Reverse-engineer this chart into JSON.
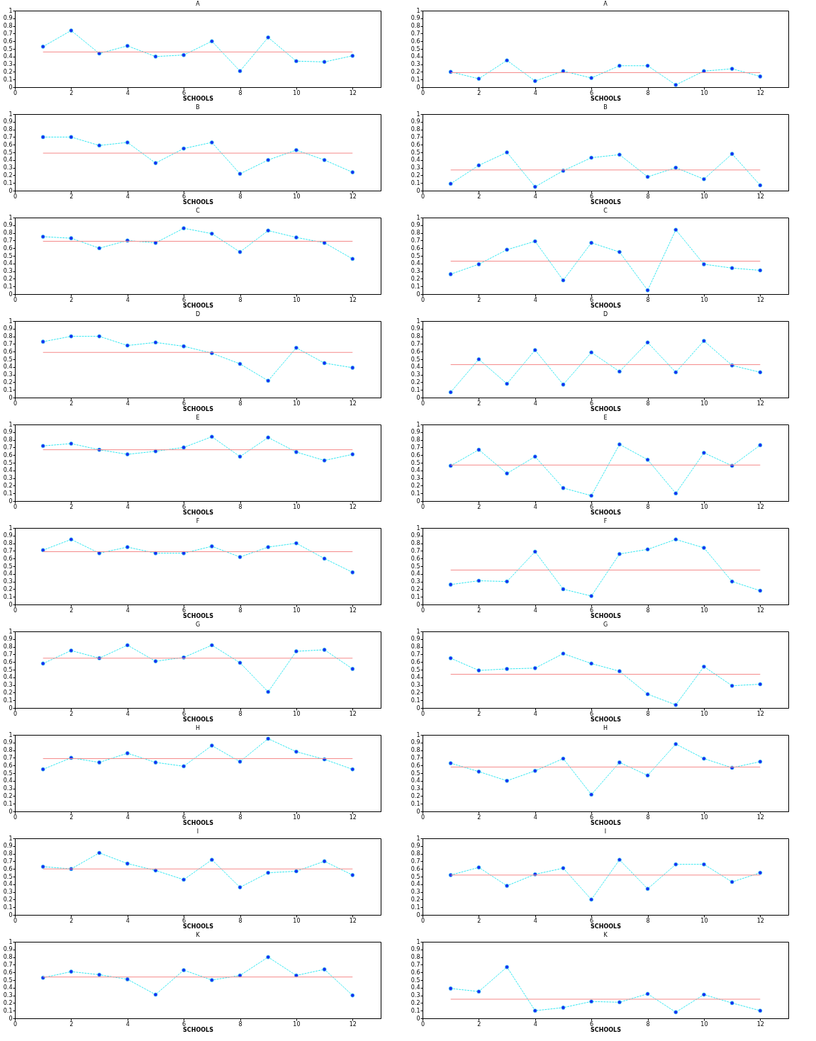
{
  "chart_data": [
    {
      "type": "line",
      "title": "A",
      "xlabel": "SCHOOLS",
      "x": [
        1,
        2,
        3,
        4,
        5,
        6,
        7,
        8,
        9,
        10,
        11,
        12
      ],
      "series": [
        {
          "color": "#33e8f2",
          "colors": [
            "#1a2cf0",
            "#1a2cf0",
            "#1a2cf0",
            "#1a2cf0",
            "#1a2cf0",
            "#1a2cf0",
            "#1a2cf0",
            "#1a2cf0",
            "#1a2cf0",
            "#1a2cf0",
            "#1a2cf0",
            "#1a2cf0"
          ],
          "values": [
            0.53,
            0.74,
            0.44,
            0.54,
            0.4,
            0.42,
            0.6,
            0.21,
            0.65,
            0.34,
            0.33,
            0.41
          ]
        }
      ],
      "ref_lines": [
        {
          "axis": "y",
          "value": 0.46,
          "color": "#f58a8a"
        }
      ],
      "xlim": [
        0,
        13
      ],
      "xticks": [
        0,
        2,
        4,
        6,
        8,
        10,
        12
      ],
      "ylim": [
        0,
        1
      ],
      "yticks": [
        0,
        0.1,
        0.2,
        0.3,
        0.4,
        0.5,
        0.6,
        0.7,
        0.8,
        0.9,
        1
      ],
      "marker": "circle",
      "line_style": "dashed"
    },
    {
      "type": "line",
      "title": "A",
      "xlabel": "SCHOOLS",
      "x": [
        1,
        2,
        3,
        4,
        5,
        6,
        7,
        8,
        9,
        10,
        11,
        12
      ],
      "series": [
        {
          "color": "#33e8f2",
          "colors": [
            "#1a2cf0",
            "#1a2cf0",
            "#1a2cf0",
            "#1a2cf0",
            "#1a2cf0",
            "#1a2cf0",
            "#1a2cf0",
            "#1a2cf0",
            "#1a2cf0",
            "#1a2cf0",
            "#1a2cf0",
            "#1a2cf0"
          ],
          "values": [
            0.2,
            0.11,
            0.35,
            0.08,
            0.21,
            0.12,
            0.28,
            0.28,
            0.03,
            0.21,
            0.24,
            0.14
          ]
        }
      ],
      "ref_lines": [
        {
          "axis": "y",
          "value": 0.19,
          "color": "#f58a8a"
        }
      ],
      "xlim": [
        0,
        13
      ],
      "xticks": [
        0,
        2,
        4,
        6,
        8,
        10,
        12
      ],
      "ylim": [
        0,
        1
      ],
      "yticks": [
        0,
        0.1,
        0.2,
        0.3,
        0.4,
        0.5,
        0.6,
        0.7,
        0.8,
        0.9,
        1
      ],
      "marker": "circle",
      "line_style": "dashed"
    },
    {
      "type": "line",
      "title": "B",
      "xlabel": "SCHOOLS",
      "x": [
        1,
        2,
        3,
        4,
        5,
        6,
        7,
        8,
        9,
        10,
        11,
        12
      ],
      "series": [
        {
          "color": "#33e8f2",
          "colors": [
            "#1a2cf0",
            "#1a2cf0",
            "#1a2cf0",
            "#1a2cf0",
            "#1a2cf0",
            "#1a2cf0",
            "#1a2cf0",
            "#1a2cf0",
            "#1a2cf0",
            "#1a2cf0",
            "#1a2cf0",
            "#1a2cf0"
          ],
          "values": [
            0.7,
            0.7,
            0.59,
            0.63,
            0.36,
            0.55,
            0.63,
            0.22,
            0.4,
            0.53,
            0.4,
            0.24
          ]
        }
      ],
      "ref_lines": [
        {
          "axis": "y",
          "value": 0.49,
          "color": "#f58a8a"
        }
      ],
      "xlim": [
        0,
        13
      ],
      "xticks": [
        0,
        2,
        4,
        6,
        8,
        10,
        12
      ],
      "ylim": [
        0,
        1
      ],
      "yticks": [
        0,
        0.1,
        0.2,
        0.3,
        0.4,
        0.5,
        0.6,
        0.7,
        0.8,
        0.9,
        1
      ],
      "marker": "circle",
      "line_style": "dashed"
    },
    {
      "type": "line",
      "title": "B",
      "xlabel": "SCHOOLS",
      "x": [
        1,
        2,
        3,
        4,
        5,
        6,
        7,
        8,
        9,
        10,
        11,
        12
      ],
      "series": [
        {
          "color": "#33e8f2",
          "colors": [
            "#1a2cf0",
            "#1a2cf0",
            "#1a2cf0",
            "#1a2cf0",
            "#1a2cf0",
            "#1a2cf0",
            "#1a2cf0",
            "#1a2cf0",
            "#1a2cf0",
            "#1a2cf0",
            "#1a2cf0",
            "#1a2cf0"
          ],
          "values": [
            0.09,
            0.33,
            0.5,
            0.05,
            0.26,
            0.43,
            0.47,
            0.18,
            0.3,
            0.15,
            0.48,
            0.07
          ]
        }
      ],
      "ref_lines": [
        {
          "axis": "y",
          "value": 0.27,
          "color": "#f58a8a"
        }
      ],
      "xlim": [
        0,
        13
      ],
      "xticks": [
        0,
        2,
        4,
        6,
        8,
        10,
        12
      ],
      "ylim": [
        0,
        1
      ],
      "yticks": [
        0,
        0.1,
        0.2,
        0.3,
        0.4,
        0.5,
        0.6,
        0.7,
        0.8,
        0.9,
        1
      ],
      "marker": "circle",
      "line_style": "dashed"
    },
    {
      "type": "line",
      "title": "C",
      "xlabel": "SCHOOLS",
      "x": [
        1,
        2,
        3,
        4,
        5,
        6,
        7,
        8,
        9,
        10,
        11,
        12
      ],
      "series": [
        {
          "color": "#33e8f2",
          "colors": [
            "#1a2cf0",
            "#1a2cf0",
            "#1a2cf0",
            "#1a2cf0",
            "#1a2cf0",
            "#1a2cf0",
            "#1a2cf0",
            "#1a2cf0",
            "#1a2cf0",
            "#1a2cf0",
            "#1a2cf0",
            "#1a2cf0"
          ],
          "values": [
            0.75,
            0.73,
            0.6,
            0.7,
            0.67,
            0.86,
            0.79,
            0.55,
            0.83,
            0.74,
            0.67,
            0.46
          ]
        }
      ],
      "ref_lines": [
        {
          "axis": "y",
          "value": 0.69,
          "color": "#f58a8a"
        }
      ],
      "xlim": [
        0,
        13
      ],
      "xticks": [
        0,
        2,
        4,
        6,
        8,
        10,
        12
      ],
      "ylim": [
        0,
        1
      ],
      "yticks": [
        0,
        0.1,
        0.2,
        0.3,
        0.4,
        0.5,
        0.6,
        0.7,
        0.8,
        0.9,
        1
      ],
      "marker": "circle",
      "line_style": "dashed"
    },
    {
      "type": "line",
      "title": "C",
      "xlabel": "SCHOOLS",
      "x": [
        1,
        2,
        3,
        4,
        5,
        6,
        7,
        8,
        9,
        10,
        11,
        12
      ],
      "series": [
        {
          "color": "#33e8f2",
          "colors": [
            "#1a2cf0",
            "#1a2cf0",
            "#1a2cf0",
            "#1a2cf0",
            "#1a2cf0",
            "#1a2cf0",
            "#1a2cf0",
            "#1a2cf0",
            "#1a2cf0",
            "#1a2cf0",
            "#1a2cf0",
            "#1a2cf0"
          ],
          "values": [
            0.26,
            0.39,
            0.58,
            0.69,
            0.18,
            0.67,
            0.55,
            0.05,
            0.84,
            0.39,
            0.34,
            0.31
          ]
        }
      ],
      "ref_lines": [
        {
          "axis": "y",
          "value": 0.43,
          "color": "#f58a8a"
        }
      ],
      "xlim": [
        0,
        13
      ],
      "xticks": [
        0,
        2,
        4,
        6,
        8,
        10,
        12
      ],
      "ylim": [
        0,
        1
      ],
      "yticks": [
        0,
        0.1,
        0.2,
        0.3,
        0.4,
        0.5,
        0.6,
        0.7,
        0.8,
        0.9,
        1
      ],
      "marker": "circle",
      "line_style": "dashed"
    },
    {
      "type": "line",
      "title": "D",
      "xlabel": "SCHOOLS",
      "x": [
        1,
        2,
        3,
        4,
        5,
        6,
        7,
        8,
        9,
        10,
        11,
        12
      ],
      "series": [
        {
          "color": "#33e8f2",
          "colors": [
            "#1a2cf0",
            "#1a2cf0",
            "#1a2cf0",
            "#1a2cf0",
            "#1a2cf0",
            "#1a2cf0",
            "#1a2cf0",
            "#1a2cf0",
            "#1a2cf0",
            "#1a2cf0",
            "#1a2cf0",
            "#1a2cf0"
          ],
          "values": [
            0.73,
            0.8,
            0.8,
            0.68,
            0.72,
            0.67,
            0.58,
            0.44,
            0.22,
            0.65,
            0.45,
            0.39
          ]
        }
      ],
      "ref_lines": [
        {
          "axis": "y",
          "value": 0.59,
          "color": "#f58a8a"
        }
      ],
      "xlim": [
        0,
        13
      ],
      "xticks": [
        0,
        2,
        4,
        6,
        8,
        10,
        12
      ],
      "ylim": [
        0,
        1
      ],
      "yticks": [
        0,
        0.1,
        0.2,
        0.3,
        0.4,
        0.5,
        0.6,
        0.7,
        0.8,
        0.9,
        1
      ],
      "marker": "circle",
      "line_style": "dashed"
    },
    {
      "type": "line",
      "title": "D",
      "xlabel": "SCHOOLS",
      "x": [
        1,
        2,
        3,
        4,
        5,
        6,
        7,
        8,
        9,
        10,
        11,
        12
      ],
      "series": [
        {
          "color": "#33e8f2",
          "colors": [
            "#1a2cf0",
            "#1a2cf0",
            "#1a2cf0",
            "#1a2cf0",
            "#1a2cf0",
            "#1a2cf0",
            "#1a2cf0",
            "#1a2cf0",
            "#1a2cf0",
            "#1a2cf0",
            "#1a2cf0",
            "#1a2cf0"
          ],
          "values": [
            0.07,
            0.5,
            0.18,
            0.62,
            0.17,
            0.59,
            0.34,
            0.72,
            0.33,
            0.74,
            0.42,
            0.33
          ]
        }
      ],
      "ref_lines": [
        {
          "axis": "y",
          "value": 0.43,
          "color": "#f58a8a"
        }
      ],
      "xlim": [
        0,
        13
      ],
      "xticks": [
        0,
        2,
        4,
        6,
        8,
        10,
        12
      ],
      "ylim": [
        0,
        1
      ],
      "yticks": [
        0,
        0.1,
        0.2,
        0.3,
        0.4,
        0.5,
        0.6,
        0.7,
        0.8,
        0.9,
        1
      ],
      "marker": "circle",
      "line_style": "dashed"
    },
    {
      "type": "line",
      "title": "E",
      "xlabel": "SCHOOLS",
      "x": [
        1,
        2,
        3,
        4,
        5,
        6,
        7,
        8,
        9,
        10,
        11,
        12
      ],
      "series": [
        {
          "color": "#33e8f2",
          "colors": [
            "#1a2cf0",
            "#1a2cf0",
            "#1a2cf0",
            "#1a2cf0",
            "#1a2cf0",
            "#1a2cf0",
            "#1a2cf0",
            "#1a2cf0",
            "#1a2cf0",
            "#1a2cf0",
            "#1a2cf0",
            "#1a2cf0"
          ],
          "values": [
            0.72,
            0.75,
            0.67,
            0.61,
            0.65,
            0.7,
            0.84,
            0.58,
            0.83,
            0.64,
            0.53,
            0.61
          ]
        }
      ],
      "ref_lines": [
        {
          "axis": "y",
          "value": 0.67,
          "color": "#f58a8a"
        }
      ],
      "xlim": [
        0,
        13
      ],
      "xticks": [
        0,
        2,
        4,
        6,
        8,
        10,
        12
      ],
      "ylim": [
        0,
        1
      ],
      "yticks": [
        0,
        0.1,
        0.2,
        0.3,
        0.4,
        0.5,
        0.6,
        0.7,
        0.8,
        0.9,
        1
      ],
      "marker": "circle",
      "line_style": "dashed"
    },
    {
      "type": "line",
      "title": "E",
      "xlabel": "SCHOOLS",
      "x": [
        1,
        2,
        3,
        4,
        5,
        6,
        7,
        8,
        9,
        10,
        11,
        12
      ],
      "series": [
        {
          "color": "#33e8f2",
          "colors": [
            "#1a2cf0",
            "#1a2cf0",
            "#1a2cf0",
            "#1a2cf0",
            "#1a2cf0",
            "#1a2cf0",
            "#1a2cf0",
            "#1a2cf0",
            "#1a2cf0",
            "#1a2cf0",
            "#1a2cf0",
            "#1a2cf0"
          ],
          "values": [
            0.46,
            0.67,
            0.36,
            0.58,
            0.17,
            0.07,
            0.74,
            0.54,
            0.1,
            0.63,
            0.46,
            0.73
          ]
        }
      ],
      "ref_lines": [
        {
          "axis": "y",
          "value": 0.47,
          "color": "#f58a8a"
        }
      ],
      "xlim": [
        0,
        13
      ],
      "xticks": [
        0,
        2,
        4,
        6,
        8,
        10,
        12
      ],
      "ylim": [
        0,
        1
      ],
      "yticks": [
        0,
        0.1,
        0.2,
        0.3,
        0.4,
        0.5,
        0.6,
        0.7,
        0.8,
        0.9,
        1
      ],
      "marker": "circle",
      "line_style": "dashed"
    },
    {
      "type": "line",
      "title": "F",
      "xlabel": "SCHOOLS",
      "x": [
        1,
        2,
        3,
        4,
        5,
        6,
        7,
        8,
        9,
        10,
        11,
        12
      ],
      "series": [
        {
          "color": "#33e8f2",
          "colors": [
            "#1a2cf0",
            "#1a2cf0",
            "#1a2cf0",
            "#1a2cf0",
            "#1a2cf0",
            "#1a2cf0",
            "#1a2cf0",
            "#1a2cf0",
            "#1a2cf0",
            "#1a2cf0",
            "#1a2cf0",
            "#1a2cf0"
          ],
          "values": [
            0.71,
            0.85,
            0.67,
            0.75,
            0.67,
            0.67,
            0.76,
            0.62,
            0.75,
            0.8,
            0.6,
            0.42
          ]
        }
      ],
      "ref_lines": [
        {
          "axis": "y",
          "value": 0.69,
          "color": "#f58a8a"
        }
      ],
      "xlim": [
        0,
        13
      ],
      "xticks": [
        0,
        2,
        4,
        6,
        8,
        10,
        12
      ],
      "ylim": [
        0,
        1
      ],
      "yticks": [
        0,
        0.1,
        0.2,
        0.3,
        0.4,
        0.5,
        0.6,
        0.7,
        0.8,
        0.9,
        1
      ],
      "marker": "circle",
      "line_style": "dashed"
    },
    {
      "type": "line",
      "title": "F",
      "xlabel": "SCHOOLS",
      "x": [
        1,
        2,
        3,
        4,
        5,
        6,
        7,
        8,
        9,
        10,
        11,
        12
      ],
      "series": [
        {
          "color": "#33e8f2",
          "colors": [
            "#1a2cf0",
            "#1a2cf0",
            "#1a2cf0",
            "#1a2cf0",
            "#1a2cf0",
            "#1a2cf0",
            "#1a2cf0",
            "#1a2cf0",
            "#1a2cf0",
            "#1a2cf0",
            "#1a2cf0",
            "#1a2cf0"
          ],
          "values": [
            0.26,
            0.31,
            0.3,
            0.69,
            0.2,
            0.11,
            0.66,
            0.72,
            0.85,
            0.74,
            0.3,
            0.18
          ]
        }
      ],
      "ref_lines": [
        {
          "axis": "y",
          "value": 0.45,
          "color": "#f58a8a"
        }
      ],
      "xlim": [
        0,
        13
      ],
      "xticks": [
        0,
        2,
        4,
        6,
        8,
        10,
        12
      ],
      "ylim": [
        0,
        1
      ],
      "yticks": [
        0,
        0.1,
        0.2,
        0.3,
        0.4,
        0.5,
        0.6,
        0.7,
        0.8,
        0.9,
        1
      ],
      "marker": "circle",
      "line_style": "dashed"
    },
    {
      "type": "line",
      "title": "G",
      "xlabel": "SCHOOLS",
      "x": [
        1,
        2,
        3,
        4,
        5,
        6,
        7,
        8,
        9,
        10,
        11,
        12
      ],
      "series": [
        {
          "color": "#33e8f2",
          "colors": [
            "#1a2cf0",
            "#1a2cf0",
            "#1a2cf0",
            "#1a2cf0",
            "#1a2cf0",
            "#1a2cf0",
            "#1a2cf0",
            "#1a2cf0",
            "#1a2cf0",
            "#1a2cf0",
            "#1a2cf0",
            "#1a2cf0"
          ],
          "values": [
            0.58,
            0.75,
            0.65,
            0.82,
            0.61,
            0.66,
            0.82,
            0.59,
            0.21,
            0.74,
            0.76,
            0.51
          ]
        }
      ],
      "ref_lines": [
        {
          "axis": "y",
          "value": 0.65,
          "color": "#f58a8a"
        }
      ],
      "xlim": [
        0,
        13
      ],
      "xticks": [
        0,
        2,
        4,
        6,
        8,
        10,
        12
      ],
      "ylim": [
        0,
        1
      ],
      "yticks": [
        0,
        0.1,
        0.2,
        0.3,
        0.4,
        0.5,
        0.6,
        0.7,
        0.8,
        0.9,
        1
      ],
      "marker": "circle",
      "line_style": "dashed"
    },
    {
      "type": "line",
      "title": "G",
      "xlabel": "SCHOOLS",
      "x": [
        1,
        2,
        3,
        4,
        5,
        6,
        7,
        8,
        9,
        10,
        11,
        12
      ],
      "series": [
        {
          "color": "#33e8f2",
          "colors": [
            "#1a2cf0",
            "#1a2cf0",
            "#1a2cf0",
            "#1a2cf0",
            "#1a2cf0",
            "#1a2cf0",
            "#1a2cf0",
            "#1a2cf0",
            "#1a2cf0",
            "#1a2cf0",
            "#1a2cf0",
            "#1a2cf0"
          ],
          "values": [
            0.65,
            0.49,
            0.51,
            0.52,
            0.71,
            0.58,
            0.48,
            0.18,
            0.04,
            0.54,
            0.29,
            0.31
          ]
        }
      ],
      "ref_lines": [
        {
          "axis": "y",
          "value": 0.44,
          "color": "#f58a8a"
        }
      ],
      "xlim": [
        0,
        13
      ],
      "xticks": [
        0,
        2,
        4,
        6,
        8,
        10,
        12
      ],
      "ylim": [
        0,
        1
      ],
      "yticks": [
        0,
        0.1,
        0.2,
        0.3,
        0.4,
        0.5,
        0.6,
        0.7,
        0.8,
        0.9,
        1
      ],
      "marker": "circle",
      "line_style": "dashed"
    },
    {
      "type": "line",
      "title": "H",
      "xlabel": "SCHOOLS",
      "x": [
        1,
        2,
        3,
        4,
        5,
        6,
        7,
        8,
        9,
        10,
        11,
        12
      ],
      "series": [
        {
          "color": "#33e8f2",
          "colors": [
            "#1a2cf0",
            "#1a2cf0",
            "#1a2cf0",
            "#1a2cf0",
            "#1a2cf0",
            "#1a2cf0",
            "#1a2cf0",
            "#1a2cf0",
            "#1a2cf0",
            "#1a2cf0",
            "#1a2cf0",
            "#1a2cf0"
          ],
          "values": [
            0.55,
            0.7,
            0.64,
            0.76,
            0.64,
            0.59,
            0.86,
            0.65,
            0.95,
            0.78,
            0.68,
            0.55
          ]
        }
      ],
      "ref_lines": [
        {
          "axis": "y",
          "value": 0.69,
          "color": "#f58a8a"
        }
      ],
      "xlim": [
        0,
        13
      ],
      "xticks": [
        0,
        2,
        4,
        6,
        8,
        10,
        12
      ],
      "ylim": [
        0,
        1
      ],
      "yticks": [
        0,
        0.1,
        0.2,
        0.3,
        0.4,
        0.5,
        0.6,
        0.7,
        0.8,
        0.9,
        1
      ],
      "marker": "circle",
      "line_style": "dashed"
    },
    {
      "type": "line",
      "title": "H",
      "xlabel": "SCHOOLS",
      "x": [
        1,
        2,
        3,
        4,
        5,
        6,
        7,
        8,
        9,
        10,
        11,
        12
      ],
      "series": [
        {
          "color": "#33e8f2",
          "colors": [
            "#1a2cf0",
            "#1a2cf0",
            "#1a2cf0",
            "#1a2cf0",
            "#1a2cf0",
            "#1a2cf0",
            "#1a2cf0",
            "#1a2cf0",
            "#1a2cf0",
            "#1a2cf0",
            "#1a2cf0",
            "#1a2cf0"
          ],
          "values": [
            0.63,
            0.52,
            0.4,
            0.53,
            0.69,
            0.22,
            0.64,
            0.47,
            0.88,
            0.69,
            0.57,
            0.65
          ]
        }
      ],
      "ref_lines": [
        {
          "axis": "y",
          "value": 0.58,
          "color": "#f58a8a"
        }
      ],
      "xlim": [
        0,
        13
      ],
      "xticks": [
        0,
        2,
        4,
        6,
        8,
        10,
        12
      ],
      "ylim": [
        0,
        1
      ],
      "yticks": [
        0,
        0.1,
        0.2,
        0.3,
        0.4,
        0.5,
        0.6,
        0.7,
        0.8,
        0.9,
        1
      ],
      "marker": "circle",
      "line_style": "dashed"
    },
    {
      "type": "line",
      "title": "I",
      "xlabel": "SCHOOLS",
      "x": [
        1,
        2,
        3,
        4,
        5,
        6,
        7,
        8,
        9,
        10,
        11,
        12
      ],
      "series": [
        {
          "color": "#33e8f2",
          "colors": [
            "#1a2cf0",
            "#1a2cf0",
            "#1a2cf0",
            "#1a2cf0",
            "#1a2cf0",
            "#1a2cf0",
            "#1a2cf0",
            "#1a2cf0",
            "#1a2cf0",
            "#1a2cf0",
            "#1a2cf0",
            "#1a2cf0"
          ],
          "values": [
            0.63,
            0.6,
            0.81,
            0.67,
            0.58,
            0.46,
            0.72,
            0.36,
            0.55,
            0.57,
            0.7,
            0.52
          ]
        }
      ],
      "ref_lines": [
        {
          "axis": "y",
          "value": 0.6,
          "color": "#f58a8a"
        }
      ],
      "xlim": [
        0,
        13
      ],
      "xticks": [
        0,
        2,
        4,
        6,
        8,
        10,
        12
      ],
      "ylim": [
        0,
        1
      ],
      "yticks": [
        0,
        0.1,
        0.2,
        0.3,
        0.4,
        0.5,
        0.6,
        0.7,
        0.8,
        0.9,
        1
      ],
      "marker": "circle",
      "line_style": "dashed"
    },
    {
      "type": "line",
      "title": "I",
      "xlabel": "SCHOOLS",
      "x": [
        1,
        2,
        3,
        4,
        5,
        6,
        7,
        8,
        9,
        10,
        11,
        12
      ],
      "series": [
        {
          "color": "#33e8f2",
          "colors": [
            "#1a2cf0",
            "#1a2cf0",
            "#1a2cf0",
            "#1a2cf0",
            "#1a2cf0",
            "#1a2cf0",
            "#1a2cf0",
            "#1a2cf0",
            "#1a2cf0",
            "#1a2cf0",
            "#1a2cf0",
            "#1a2cf0"
          ],
          "values": [
            0.52,
            0.62,
            0.38,
            0.53,
            0.61,
            0.2,
            0.72,
            0.34,
            0.66,
            0.66,
            0.43,
            0.55
          ]
        }
      ],
      "ref_lines": [
        {
          "axis": "y",
          "value": 0.52,
          "color": "#f58a8a"
        }
      ],
      "xlim": [
        0,
        13
      ],
      "xticks": [
        0,
        2,
        4,
        6,
        8,
        10,
        12
      ],
      "ylim": [
        0,
        1
      ],
      "yticks": [
        0,
        0.1,
        0.2,
        0.3,
        0.4,
        0.5,
        0.6,
        0.7,
        0.8,
        0.9,
        1
      ],
      "marker": "circle",
      "line_style": "dashed"
    },
    {
      "type": "line",
      "title": "K",
      "xlabel": "SCHOOLS",
      "x": [
        1,
        2,
        3,
        4,
        5,
        6,
        7,
        8,
        9,
        10,
        11,
        12
      ],
      "series": [
        {
          "color": "#33e8f2",
          "colors": [
            "#1a2cf0",
            "#1a2cf0",
            "#1a2cf0",
            "#1a2cf0",
            "#1a2cf0",
            "#1a2cf0",
            "#1a2cf0",
            "#1a2cf0",
            "#1a2cf0",
            "#1a2cf0",
            "#1a2cf0",
            "#1a2cf0"
          ],
          "values": [
            0.53,
            0.61,
            0.57,
            0.51,
            0.31,
            0.63,
            0.5,
            0.56,
            0.8,
            0.56,
            0.64,
            0.3
          ]
        }
      ],
      "ref_lines": [
        {
          "axis": "y",
          "value": 0.54,
          "color": "#f58a8a"
        }
      ],
      "xlim": [
        0,
        13
      ],
      "xticks": [
        0,
        2,
        4,
        6,
        8,
        10,
        12
      ],
      "ylim": [
        0,
        1
      ],
      "yticks": [
        0,
        0.1,
        0.2,
        0.3,
        0.4,
        0.5,
        0.6,
        0.7,
        0.8,
        0.9,
        1
      ],
      "marker": "circle",
      "line_style": "dashed"
    },
    {
      "type": "line",
      "title": "K",
      "xlabel": "SCHOOLS",
      "x": [
        1,
        2,
        3,
        4,
        5,
        6,
        7,
        8,
        9,
        10,
        11,
        12
      ],
      "series": [
        {
          "color": "#33e8f2",
          "colors": [
            "#1a2cf0",
            "#1a2cf0",
            "#1a2cf0",
            "#1a2cf0",
            "#1a2cf0",
            "#1a2cf0",
            "#1a2cf0",
            "#1a2cf0",
            "#1a2cf0",
            "#1a2cf0",
            "#1a2cf0",
            "#1a2cf0"
          ],
          "values": [
            0.39,
            0.35,
            0.67,
            0.1,
            0.14,
            0.22,
            0.21,
            0.32,
            0.08,
            0.31,
            0.2,
            0.1
          ]
        }
      ],
      "ref_lines": [
        {
          "axis": "y",
          "value": 0.25,
          "color": "#f58a8a"
        }
      ],
      "xlim": [
        0,
        13
      ],
      "xticks": [
        0,
        2,
        4,
        6,
        8,
        10,
        12
      ],
      "ylim": [
        0,
        1
      ],
      "yticks": [
        0,
        0.1,
        0.2,
        0.3,
        0.4,
        0.5,
        0.6,
        0.7,
        0.8,
        0.9,
        1
      ],
      "marker": "circle",
      "line_style": "dashed"
    }
  ]
}
